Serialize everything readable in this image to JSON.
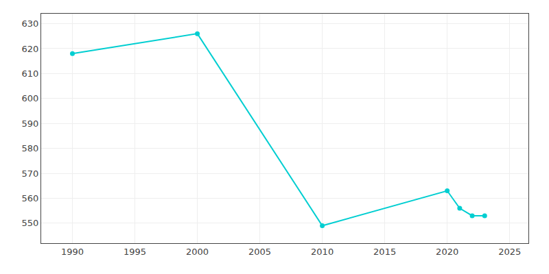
{
  "chart_data": {
    "type": "line",
    "x": [
      1990,
      2000,
      2010,
      2020,
      2021,
      2022,
      2023
    ],
    "values": [
      618,
      626,
      549,
      563,
      556,
      553,
      553
    ],
    "color": "#00CED1",
    "marker": "circle",
    "xlim": [
      1987.5,
      2026.5
    ],
    "xticks": [
      1990,
      1995,
      2000,
      2005,
      2010,
      2015,
      2020,
      2025
    ],
    "ylim": [
      542,
      634
    ],
    "yticks": [
      550,
      560,
      570,
      580,
      590,
      600,
      610,
      620,
      630
    ],
    "grid": true
  }
}
